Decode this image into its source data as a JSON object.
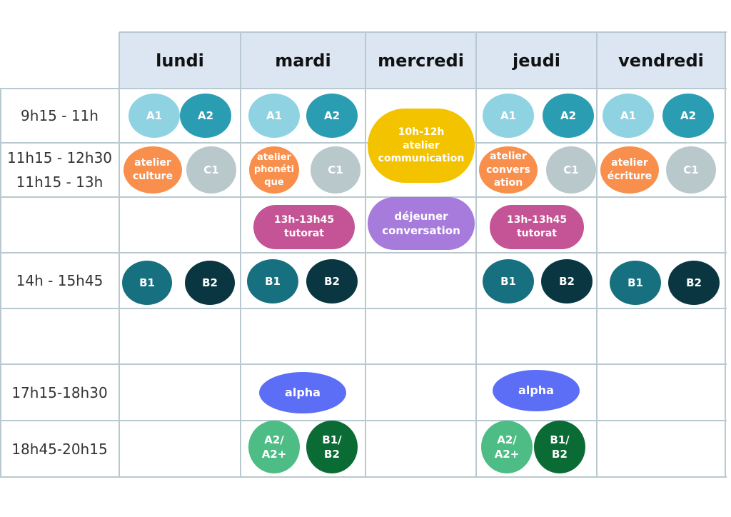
{
  "days": [
    "lundi",
    "mardi",
    "mercredi",
    "jeudi",
    "vendredi"
  ],
  "time_slots": [
    {
      "lines": [
        "9h15 - 11h"
      ]
    },
    {
      "lines": [
        "11h15 - 12h30",
        "11h15 - 13h"
      ]
    },
    {
      "lines": [
        ""
      ]
    },
    {
      "lines": [
        "14h - 15h45"
      ]
    },
    {
      "lines": [
        ""
      ]
    },
    {
      "lines": [
        "17h15-18h30"
      ]
    },
    {
      "lines": [
        "18h45-20h15"
      ]
    }
  ],
  "colors": {
    "header_bg": "#dce6f3",
    "grid": "#b8c9cf",
    "A1": "#8fd3e3",
    "A2": "#2a9db3",
    "C1": "#b9c8cb",
    "atelier": "#f98f4c",
    "B1": "#17707f",
    "B2": "#093640",
    "communication": "#f4c300",
    "dejeuner": "#a77bdb",
    "tutorat": "#c55496",
    "alpha": "#5c6ef5",
    "A2plus": "#4dbd85",
    "B1B2": "#0b6b35"
  },
  "sessions": {
    "lundi": [
      {
        "text": [
          "A1"
        ],
        "color": "A1"
      },
      {
        "text": [
          "A2"
        ],
        "color": "A2"
      },
      {
        "text": [
          "atelier",
          "culture"
        ],
        "color": "atelier"
      },
      {
        "text": [
          "C1"
        ],
        "color": "C1"
      },
      {
        "text": [
          "B1"
        ],
        "color": "B1"
      },
      {
        "text": [
          "B2"
        ],
        "color": "B2"
      }
    ],
    "mardi": [
      {
        "text": [
          "A1"
        ],
        "color": "A1"
      },
      {
        "text": [
          "A2"
        ],
        "color": "A2"
      },
      {
        "text": [
          "atelier",
          "phonéti",
          "que"
        ],
        "color": "atelier"
      },
      {
        "text": [
          "C1"
        ],
        "color": "C1"
      },
      {
        "text": [
          "13h-13h45",
          "tutorat"
        ],
        "color": "tutorat"
      },
      {
        "text": [
          "B1"
        ],
        "color": "B1"
      },
      {
        "text": [
          "B2"
        ],
        "color": "B2"
      },
      {
        "text": [
          "alpha"
        ],
        "color": "alpha"
      },
      {
        "text": [
          "A2/",
          "A2+"
        ],
        "color": "A2plus"
      },
      {
        "text": [
          "B1/",
          "B2"
        ],
        "color": "B1B2"
      }
    ],
    "mercredi": [
      {
        "text": [
          "10h-12h",
          "atelier",
          "communication"
        ],
        "color": "communication"
      },
      {
        "text": [
          "déjeuner",
          "conversation"
        ],
        "color": "dejeuner"
      }
    ],
    "jeudi": [
      {
        "text": [
          "A1"
        ],
        "color": "A1"
      },
      {
        "text": [
          "A2"
        ],
        "color": "A2"
      },
      {
        "text": [
          "atelier",
          "convers",
          "ation"
        ],
        "color": "atelier"
      },
      {
        "text": [
          "C1"
        ],
        "color": "C1"
      },
      {
        "text": [
          "13h-13h45",
          "tutorat"
        ],
        "color": "tutorat"
      },
      {
        "text": [
          "B1"
        ],
        "color": "B1"
      },
      {
        "text": [
          "B2"
        ],
        "color": "B2"
      },
      {
        "text": [
          "alpha"
        ],
        "color": "alpha"
      },
      {
        "text": [
          "A2/",
          "A2+"
        ],
        "color": "A2plus"
      },
      {
        "text": [
          "B1/",
          "B2"
        ],
        "color": "B1B2"
      }
    ],
    "vendredi": [
      {
        "text": [
          "A1"
        ],
        "color": "A1"
      },
      {
        "text": [
          "A2"
        ],
        "color": "A2"
      },
      {
        "text": [
          "atelier",
          "écriture"
        ],
        "color": "atelier"
      },
      {
        "text": [
          "C1"
        ],
        "color": "C1"
      },
      {
        "text": [
          "B1"
        ],
        "color": "B1"
      },
      {
        "text": [
          "B2"
        ],
        "color": "B2"
      }
    ]
  }
}
